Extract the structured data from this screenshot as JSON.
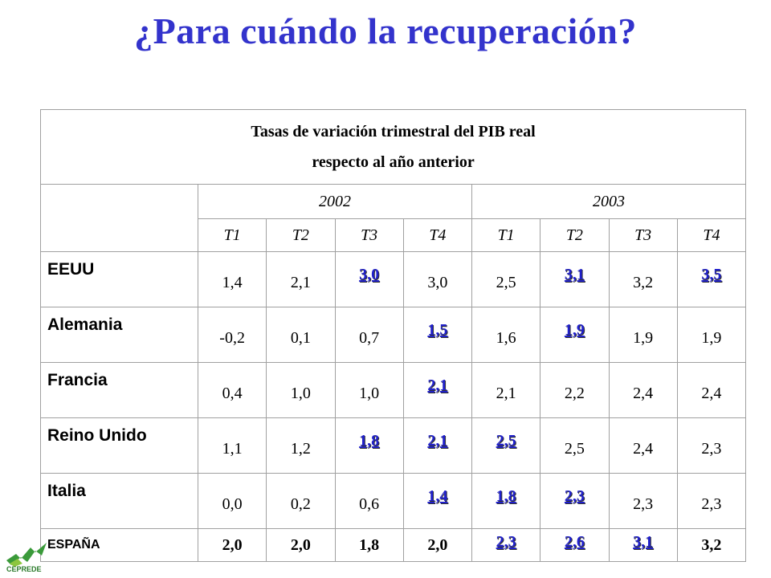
{
  "slide": {
    "title": "¿Para cuándo la recuperación?"
  },
  "table": {
    "header_line1": "Tasas de variación trimestral del PIB real",
    "header_line2": "respecto al año anterior",
    "years": [
      "2002",
      "2003"
    ],
    "quarters": [
      "T1",
      "T2",
      "T3",
      "T4",
      "T1",
      "T2",
      "T3",
      "T4"
    ],
    "highlight_color": "#2020cc",
    "rows": [
      {
        "name": "EEUU",
        "values": [
          "1,4",
          "2,1",
          "3,0",
          "3,0",
          "2,5",
          "3,1",
          "3,2",
          "3,5"
        ],
        "highlight": [
          false,
          false,
          true,
          false,
          false,
          true,
          false,
          true
        ]
      },
      {
        "name": "Alemania",
        "values": [
          "-0,2",
          "0,1",
          "0,7",
          "1,5",
          "1,6",
          "1,9",
          "1,9",
          "1,9"
        ],
        "highlight": [
          false,
          false,
          false,
          true,
          false,
          true,
          false,
          false
        ]
      },
      {
        "name": "Francia",
        "values": [
          "0,4",
          "1,0",
          "1,0",
          "2,1",
          "2,1",
          "2,2",
          "2,4",
          "2,4"
        ],
        "highlight": [
          false,
          false,
          false,
          true,
          false,
          false,
          false,
          false
        ]
      },
      {
        "name": "Reino Unido",
        "values": [
          "1,1",
          "1,2",
          "1,8",
          "2,1",
          "2,5",
          "2,5",
          "2,4",
          "2,3"
        ],
        "highlight": [
          false,
          false,
          true,
          true,
          true,
          false,
          false,
          false
        ]
      },
      {
        "name": "Italia",
        "values": [
          "0,0",
          "0,2",
          "0,6",
          "1,4",
          "1,8",
          "2,3",
          "2,3",
          "2,3"
        ],
        "highlight": [
          false,
          false,
          false,
          true,
          true,
          true,
          false,
          false
        ]
      }
    ],
    "spain": {
      "name": "ESPAÑA",
      "values": [
        "2,0",
        "2,0",
        "1,8",
        "2,0",
        "2,3",
        "2,6",
        "3,1",
        "3,2"
      ],
      "highlight": [
        false,
        false,
        false,
        false,
        true,
        true,
        true,
        false
      ]
    }
  },
  "logo": {
    "text": "CEPREDE",
    "icon": "ceprede-logo-icon",
    "color": "#2a7a2a"
  }
}
